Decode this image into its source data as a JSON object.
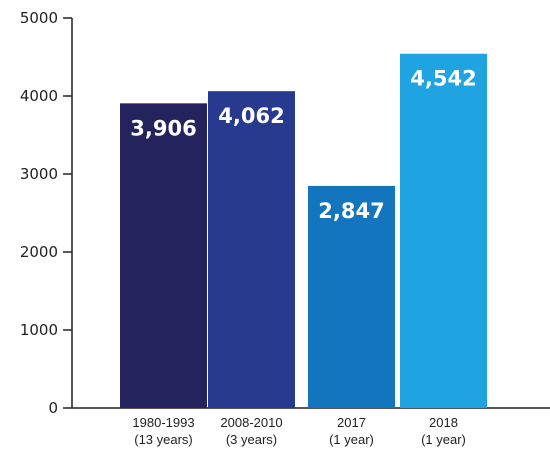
{
  "chart_data": {
    "type": "bar",
    "categories": [
      [
        "1980-1993",
        "(13 years)"
      ],
      [
        "2008-2010",
        "(3 years)"
      ],
      [
        "2017",
        "(1 year)"
      ],
      [
        "2018",
        "(1 year)"
      ]
    ],
    "values": [
      3906,
      4062,
      2847,
      4542
    ],
    "value_labels": [
      "3,906",
      "4,062",
      "2,847",
      "4,542"
    ],
    "bar_colors": [
      "#25235e",
      "#283a8f",
      "#1275bd",
      "#1fa3e1"
    ],
    "ylim": [
      0,
      5000
    ],
    "yticks": [
      0,
      1000,
      2000,
      3000,
      4000,
      5000
    ],
    "ytick_labels": [
      "0",
      "1000",
      "2000",
      "3000",
      "4000",
      "5000"
    ],
    "title": "",
    "xlabel": "",
    "ylabel": "",
    "grid": false,
    "legend": "none"
  }
}
